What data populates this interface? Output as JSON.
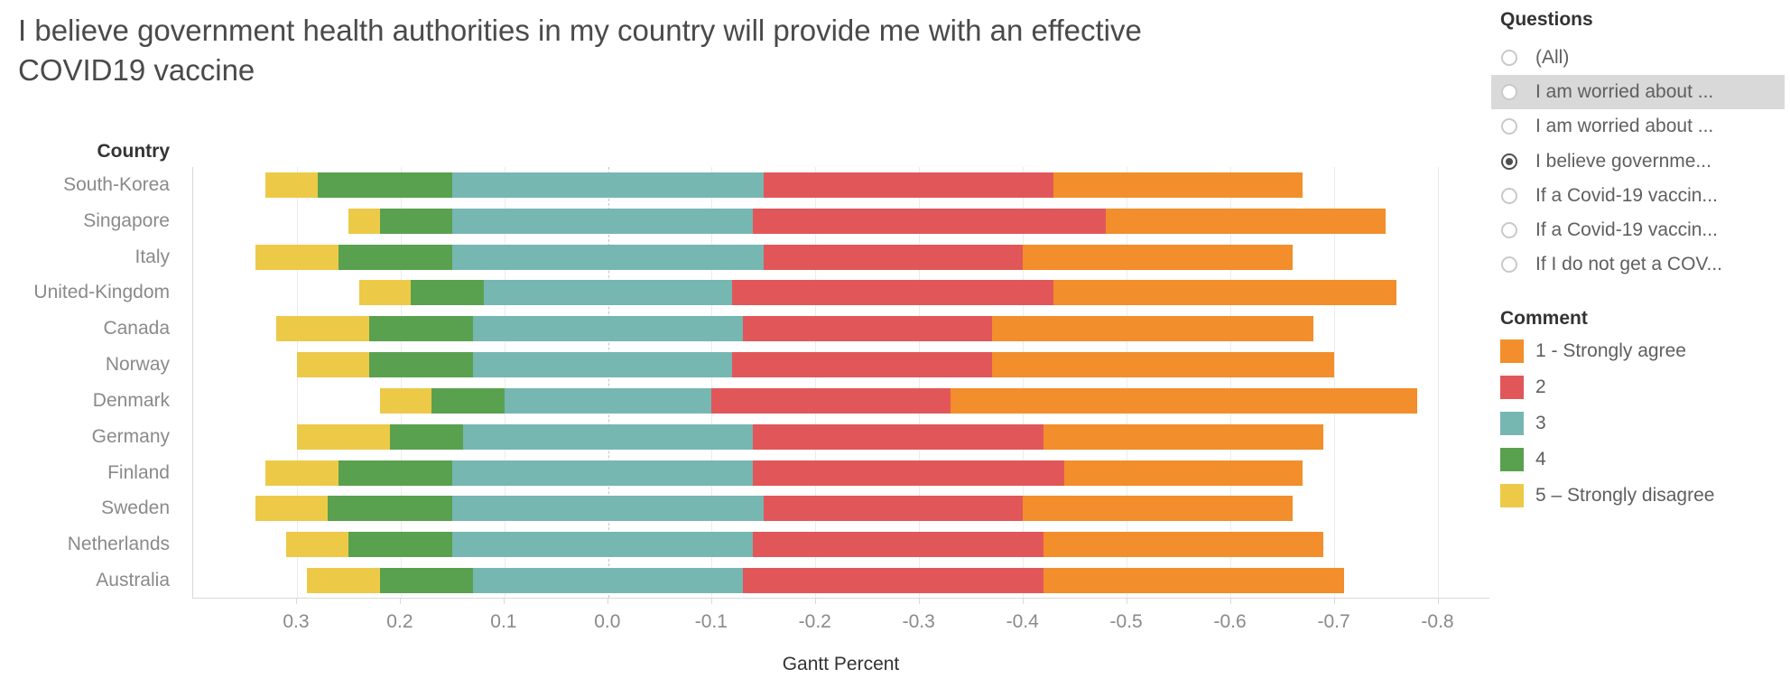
{
  "title": "I believe government health authorities in my country will provide me with an effective COVID19 vaccine",
  "questions_panel": {
    "title": "Questions",
    "options": [
      {
        "label": "(All)",
        "selected": false,
        "highlighted": false
      },
      {
        "label": "I am worried about ...",
        "selected": false,
        "highlighted": true
      },
      {
        "label": "I am worried about ...",
        "selected": false,
        "highlighted": false
      },
      {
        "label": "I believe governme...",
        "selected": true,
        "highlighted": false
      },
      {
        "label": "If a Covid-19 vaccin...",
        "selected": false,
        "highlighted": false
      },
      {
        "label": "If a Covid-19 vaccin...",
        "selected": false,
        "highlighted": false
      },
      {
        "label": "If I do not get a COV...",
        "selected": false,
        "highlighted": false
      }
    ]
  },
  "legend": {
    "title": "Comment",
    "items": [
      {
        "label": "1 - Strongly agree",
        "color": "#F28E2B"
      },
      {
        "label": "2",
        "color": "#E15759"
      },
      {
        "label": "3",
        "color": "#76B7B2"
      },
      {
        "label": "4",
        "color": "#59A14F"
      },
      {
        "label": "5 – Strongly disagree",
        "color": "#EDC948"
      }
    ]
  },
  "chart_data": {
    "type": "bar",
    "variant": "horizontal-diverging-stacked",
    "row_header": "Country",
    "xlabel": "Gantt Percent",
    "x_tick_labels": [
      "0.3",
      "0.2",
      "0.1",
      "0.0",
      "-0.1",
      "-0.2",
      "-0.3",
      "-0.4",
      "-0.5",
      "-0.6",
      "-0.7",
      "-0.8"
    ],
    "x_axis_left_value": 0.4,
    "x_axis_right_value": -0.85,
    "grid": true,
    "zero_line_dashed": true,
    "segment_order_left_to_right": [
      "5 – Strongly disagree",
      "4",
      "3",
      "2",
      "1 - Strongly agree"
    ],
    "segment_colors_left_to_right": [
      "#EDC948",
      "#59A14F",
      "#76B7B2",
      "#E15759",
      "#F28E2B"
    ],
    "note": "left_edge_value is the Gantt start on the reversed axis; segment_percents are shares (%) of respondents per answer 5,4,3,2,1 summing to 100",
    "bars": [
      {
        "country": "South-Korea",
        "left_edge_value": 0.33,
        "segment_percents": [
          5,
          13,
          30,
          28,
          24
        ]
      },
      {
        "country": "Singapore",
        "left_edge_value": 0.25,
        "segment_percents": [
          3,
          7,
          29,
          34,
          27
        ]
      },
      {
        "country": "Italy",
        "left_edge_value": 0.34,
        "segment_percents": [
          8,
          11,
          30,
          25,
          26
        ]
      },
      {
        "country": "United-Kingdom",
        "left_edge_value": 0.24,
        "segment_percents": [
          5,
          7,
          24,
          31,
          33
        ]
      },
      {
        "country": "Canada",
        "left_edge_value": 0.32,
        "segment_percents": [
          9,
          10,
          26,
          24,
          31
        ]
      },
      {
        "country": "Norway",
        "left_edge_value": 0.3,
        "segment_percents": [
          7,
          10,
          25,
          25,
          33
        ]
      },
      {
        "country": "Denmark",
        "left_edge_value": 0.22,
        "segment_percents": [
          5,
          7,
          20,
          23,
          45
        ]
      },
      {
        "country": "Germany",
        "left_edge_value": 0.3,
        "segment_percents": [
          9,
          7,
          28,
          28,
          27
        ]
      },
      {
        "country": "Finland",
        "left_edge_value": 0.33,
        "segment_percents": [
          7,
          11,
          29,
          30,
          23
        ]
      },
      {
        "country": "Sweden",
        "left_edge_value": 0.34,
        "segment_percents": [
          7,
          12,
          30,
          25,
          26
        ]
      },
      {
        "country": "Netherlands",
        "left_edge_value": 0.31,
        "segment_percents": [
          6,
          10,
          29,
          28,
          27
        ]
      },
      {
        "country": "Australia",
        "left_edge_value": 0.29,
        "segment_percents": [
          7,
          9,
          26,
          29,
          29
        ]
      }
    ]
  }
}
